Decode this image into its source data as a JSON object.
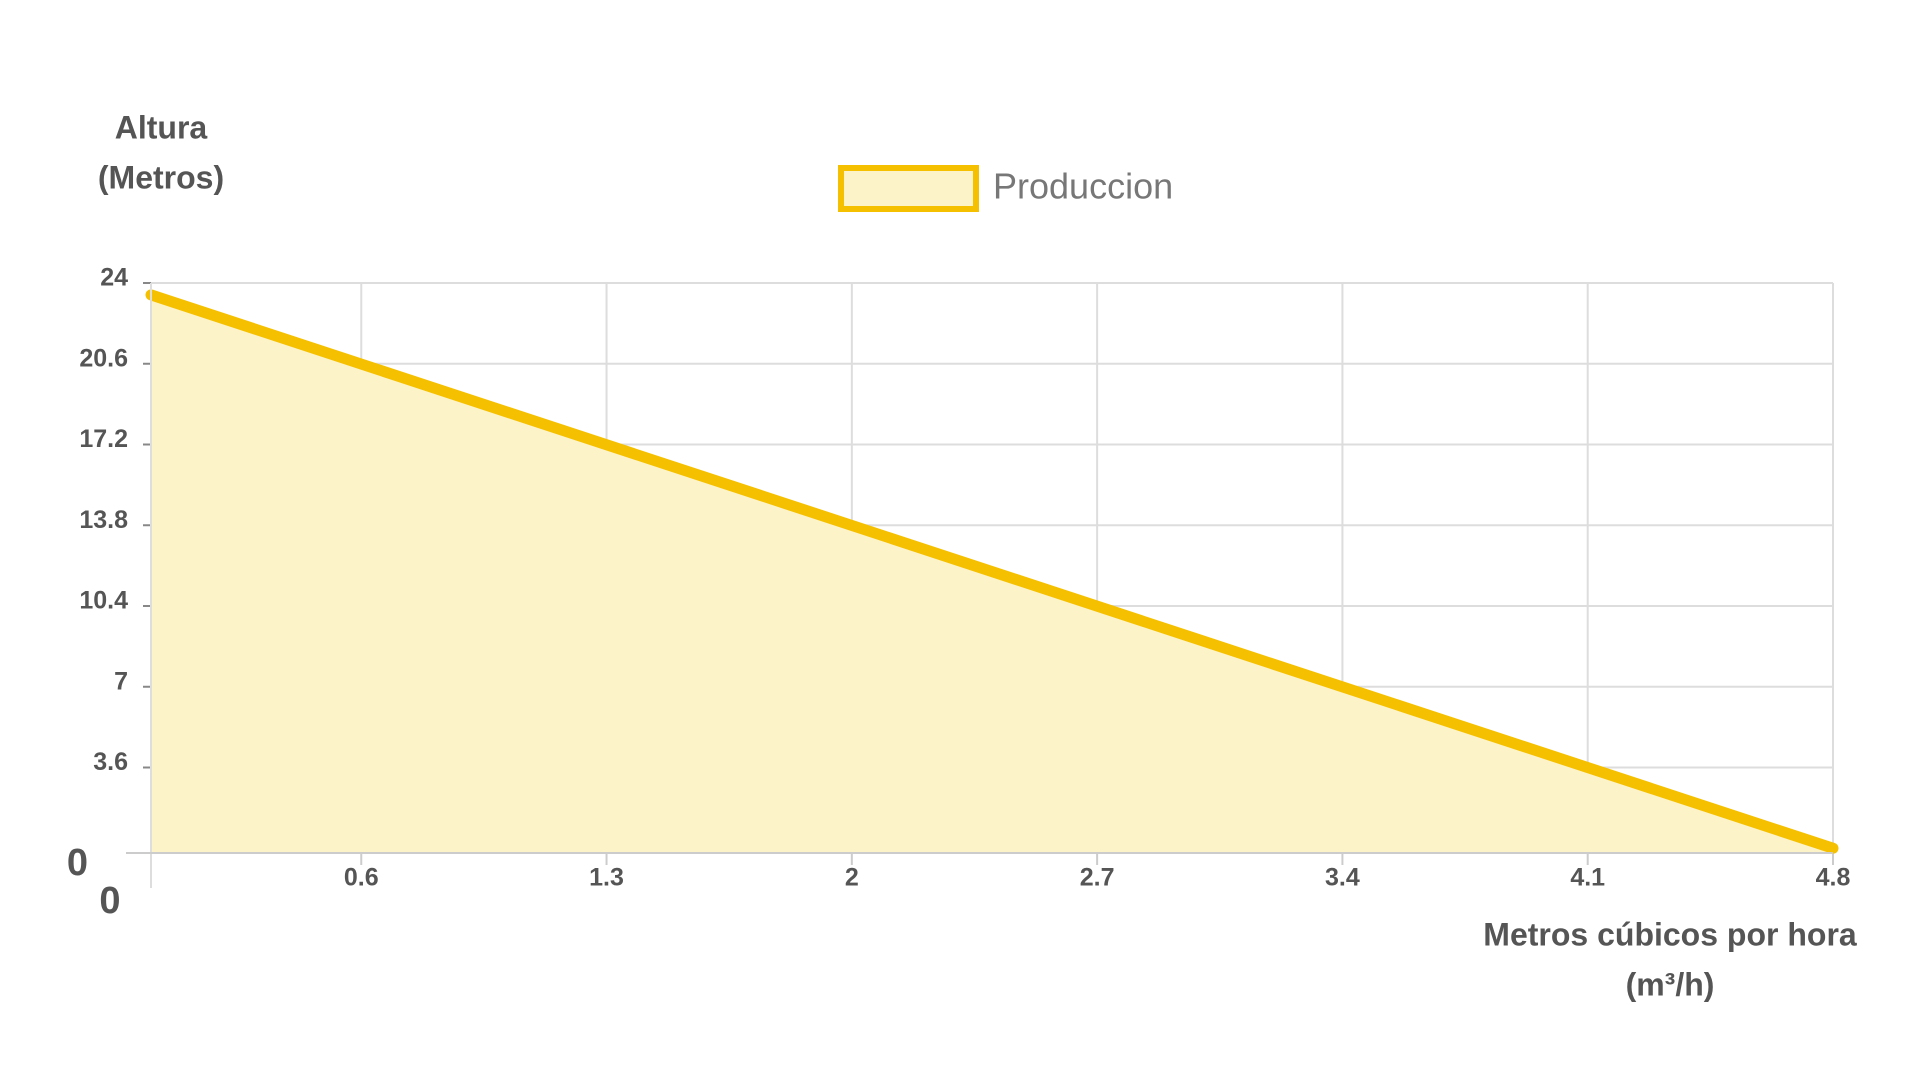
{
  "chart_data": {
    "type": "area",
    "y_label": [
      "Altura",
      "(Metros)"
    ],
    "x_label": [
      "Metros cúbicos por hora",
      "(m³/h)"
    ],
    "x": [
      0,
      4.8
    ],
    "series": [
      {
        "name": "Produccion",
        "color": "#f5c000",
        "fill": "#fdf3c8",
        "values": [
          23.5,
          0.2
        ]
      }
    ],
    "xlim": [
      0,
      4.8
    ],
    "xticks": [
      0,
      0.6,
      1.3,
      2,
      2.7,
      3.4,
      4.1,
      4.8
    ],
    "ylim": [
      0,
      24
    ],
    "yticks": [
      0,
      3.6,
      7,
      10.4,
      13.8,
      17.2,
      20.6,
      24
    ],
    "grid": true,
    "legend": "top"
  }
}
